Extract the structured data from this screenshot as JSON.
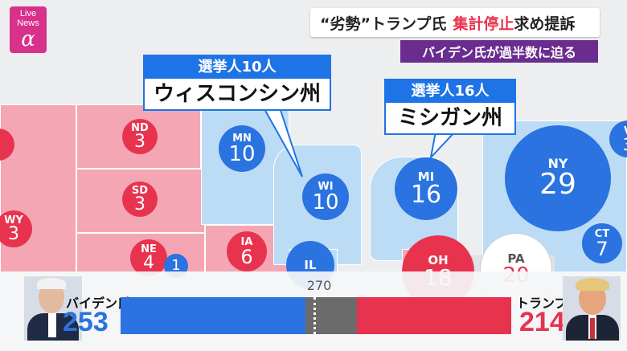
{
  "logo": {
    "line1": "Live",
    "line2": "News",
    "symbol": "α"
  },
  "headline": {
    "main_prefix": "“劣勢”トランプ氏",
    "main_highlight": "集計停止",
    "main_suffix": "求め提訴",
    "sub": "バイデン氏が過半数に迫る",
    "highlight_color": "#e8334f",
    "sub_bg": "#6a2d8f"
  },
  "callouts": {
    "wisconsin": {
      "top": "選挙人10人",
      "bottom": "ウィスコンシン州"
    },
    "michigan": {
      "top": "選挙人16人",
      "bottom": "ミシガン州"
    }
  },
  "states": [
    {
      "abbr": "ND",
      "votes": "3",
      "party": "rep"
    },
    {
      "abbr": "SD",
      "votes": "3",
      "party": "rep"
    },
    {
      "abbr": "WY",
      "votes": "3",
      "party": "rep"
    },
    {
      "abbr": "NE",
      "votes": "4",
      "party": "rep"
    },
    {
      "abbr": "",
      "votes": "1",
      "party": "dem"
    },
    {
      "abbr": "IA",
      "votes": "6",
      "party": "rep"
    },
    {
      "abbr": "MN",
      "votes": "10",
      "party": "dem"
    },
    {
      "abbr": "WI",
      "votes": "10",
      "party": "dem"
    },
    {
      "abbr": "MI",
      "votes": "16",
      "party": "dem"
    },
    {
      "abbr": "NY",
      "votes": "29",
      "party": "dem"
    },
    {
      "abbr": "IL",
      "votes": "",
      "party": "dem"
    },
    {
      "abbr": "OH",
      "votes": "18",
      "party": "rep"
    },
    {
      "abbr": "PA",
      "votes": "20",
      "party": "undecided"
    },
    {
      "abbr": "CT",
      "votes": "7",
      "party": "dem"
    },
    {
      "abbr": "V",
      "votes": "3",
      "party": "dem"
    }
  ],
  "tally": {
    "threshold": "270",
    "biden": {
      "label": "バイデン氏",
      "votes": "253",
      "color": "#2a73e0"
    },
    "trump": {
      "label": "トランプ氏",
      "votes": "214",
      "color": "#e8334f"
    }
  },
  "colors": {
    "dem": "#2a73e0",
    "rep": "#e8334f",
    "undecided": "#7a7a7a"
  }
}
